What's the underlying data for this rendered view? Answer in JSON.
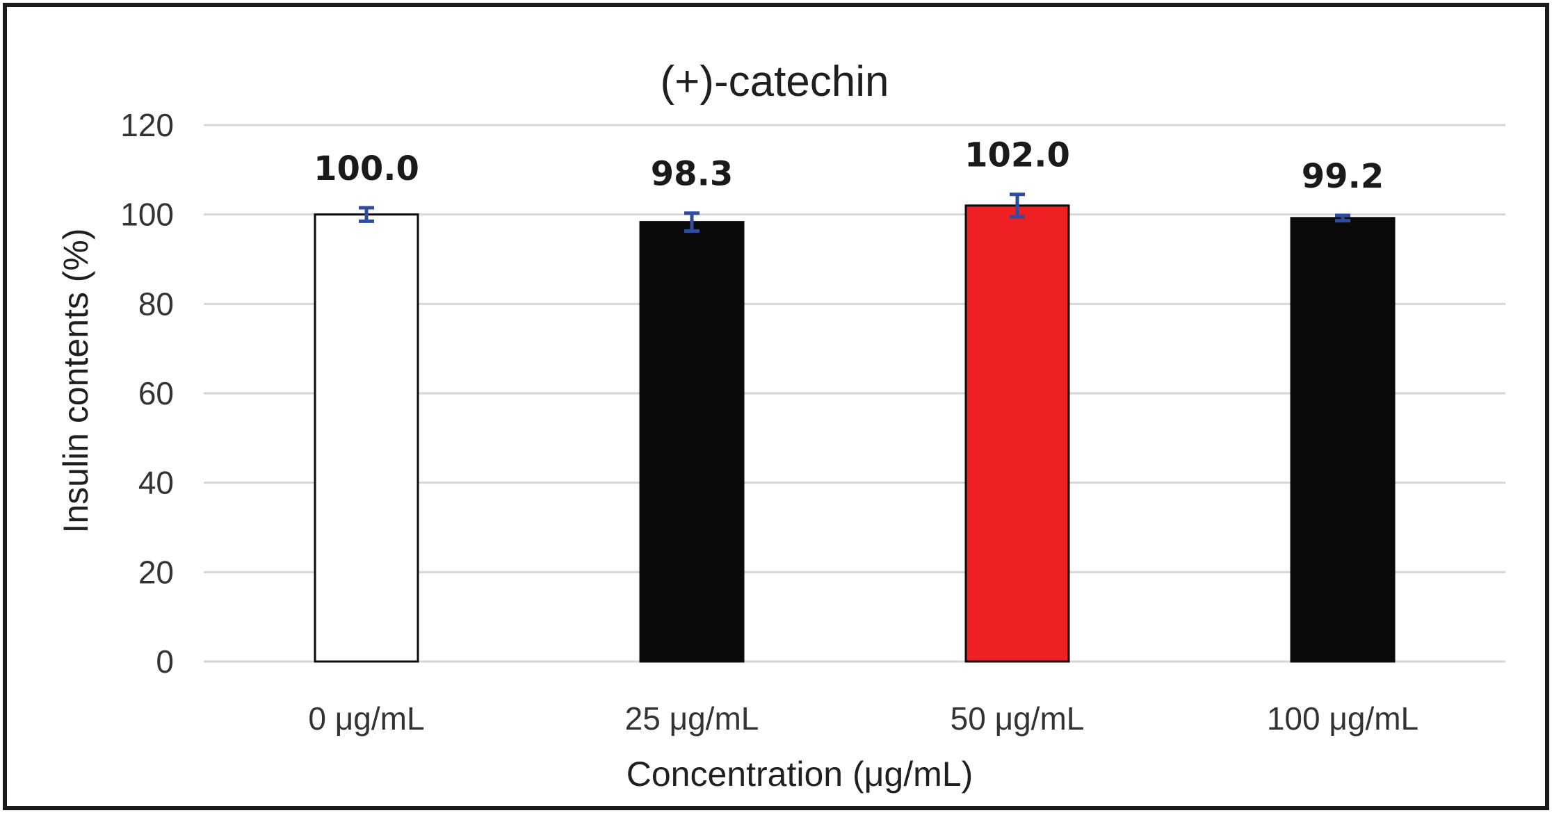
{
  "chart_data": {
    "type": "bar",
    "title": "(+)-catechin",
    "xlabel": "Concentration  (μg/mL)",
    "ylabel": "Insulin contents (%)",
    "categories": [
      "0 μg/mL",
      "25 μg/mL",
      "50 μg/mL",
      "100 μg/mL"
    ],
    "values": [
      100.0,
      98.3,
      102.0,
      99.2
    ],
    "value_labels": [
      "100.0",
      "98.3",
      "102.0",
      "99.2"
    ],
    "errors": [
      1.5,
      2.0,
      2.5,
      0.6
    ],
    "bar_colors": [
      "#ffffff",
      "#0a0a0a",
      "#ee2024",
      "#0a0a0a"
    ],
    "bar_outline_color": "#0a0a0a",
    "error_bar_color": "#2e4d9f",
    "ylim": [
      0,
      120
    ],
    "yticks": [
      "0",
      "20",
      "40",
      "60",
      "80",
      "100",
      "120"
    ],
    "grid": true,
    "legend": "none"
  }
}
